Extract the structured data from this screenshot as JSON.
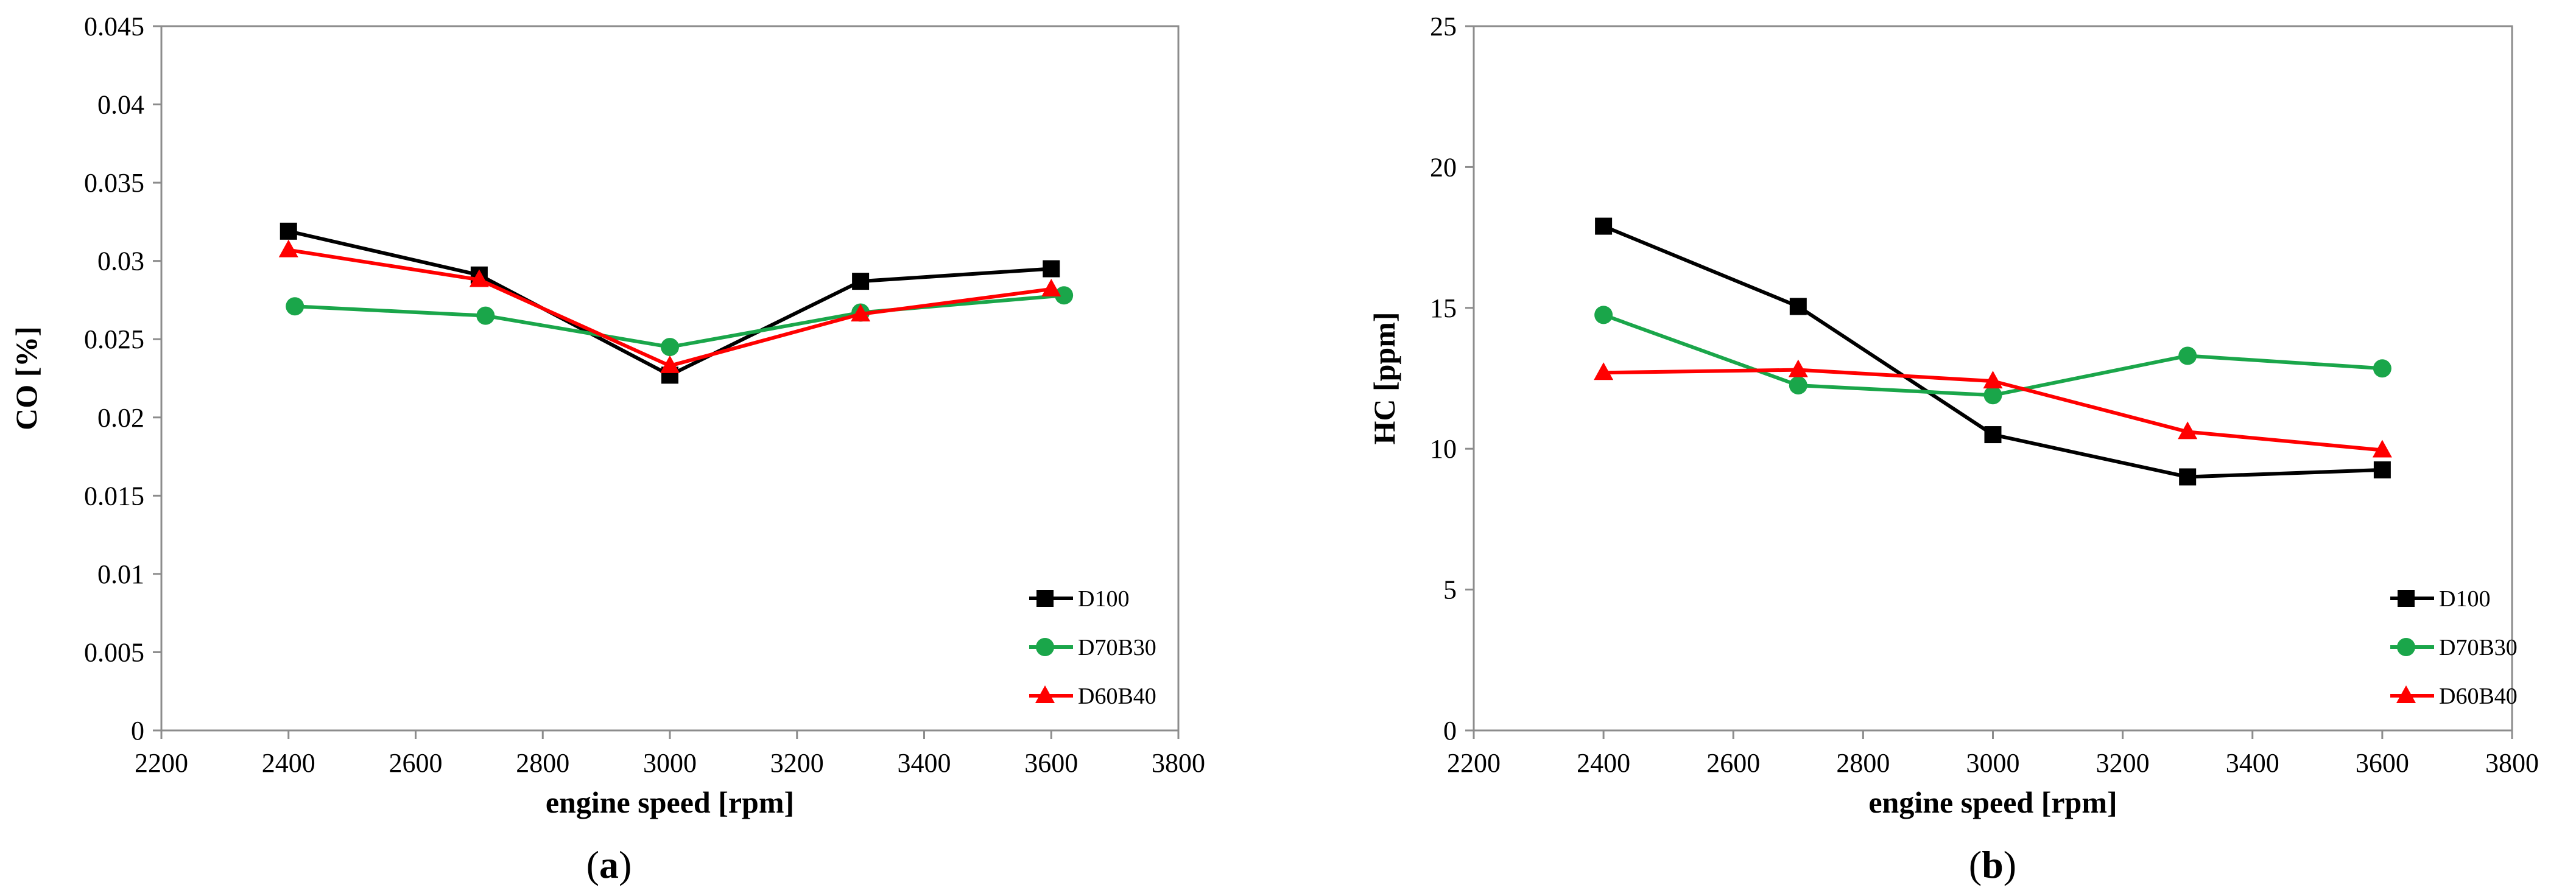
{
  "chart_data": [
    {
      "type": "line",
      "panel_label": "a",
      "xlabel": "engine speed [rpm]",
      "ylabel": "CO [%]",
      "xlim": [
        2200,
        3800
      ],
      "ylim": [
        0,
        0.045
      ],
      "xticks": [
        2200,
        2400,
        2600,
        2800,
        3000,
        3200,
        3400,
        3600,
        3800
      ],
      "yticks": [
        0,
        0.005,
        0.01,
        0.015,
        0.02,
        0.025,
        0.03,
        0.035,
        0.04,
        0.045
      ],
      "grid": false,
      "legend_position": "bottom-right",
      "series": [
        {
          "name": "D100",
          "color": "#000000",
          "marker": "square",
          "x": [
            2400,
            2700,
            3000,
            3300,
            3600
          ],
          "values": [
            0.0319,
            0.0291,
            0.0227,
            0.0287,
            0.0295
          ]
        },
        {
          "name": "D70B30",
          "color": "#1aa64a",
          "marker": "circle",
          "x": [
            2410,
            2710,
            3000,
            3300,
            3620
          ],
          "values": [
            0.0271,
            0.0265,
            0.0245,
            0.0267,
            0.0278
          ]
        },
        {
          "name": "D60B40",
          "color": "#ff0000",
          "marker": "triangle",
          "x": [
            2400,
            2700,
            3000,
            3300,
            3600
          ],
          "values": [
            0.0307,
            0.0288,
            0.0233,
            0.0266,
            0.0282
          ]
        }
      ]
    },
    {
      "type": "line",
      "panel_label": "b",
      "xlabel": "engine speed [rpm]",
      "ylabel": "HC [ppm]",
      "xlim": [
        2200,
        3800
      ],
      "ylim": [
        0,
        25
      ],
      "xticks": [
        2200,
        2400,
        2600,
        2800,
        3000,
        3200,
        3400,
        3600,
        3800
      ],
      "yticks": [
        0,
        5,
        10,
        15,
        20,
        25
      ],
      "grid": false,
      "legend_position": "bottom-right",
      "series": [
        {
          "name": "D100",
          "color": "#000000",
          "marker": "square",
          "x": [
            2400,
            2700,
            3000,
            3300,
            3600
          ],
          "values": [
            17.9,
            15.05,
            10.5,
            9.0,
            9.25
          ]
        },
        {
          "name": "D70B30",
          "color": "#1aa64a",
          "marker": "circle",
          "x": [
            2400,
            2700,
            3000,
            3300,
            3600
          ],
          "values": [
            14.75,
            12.25,
            11.9,
            13.3,
            12.85
          ]
        },
        {
          "name": "D60B40",
          "color": "#ff0000",
          "marker": "triangle",
          "x": [
            2400,
            2700,
            3000,
            3300,
            3600
          ],
          "values": [
            12.7,
            12.8,
            12.4,
            10.6,
            9.95
          ]
        }
      ]
    }
  ]
}
